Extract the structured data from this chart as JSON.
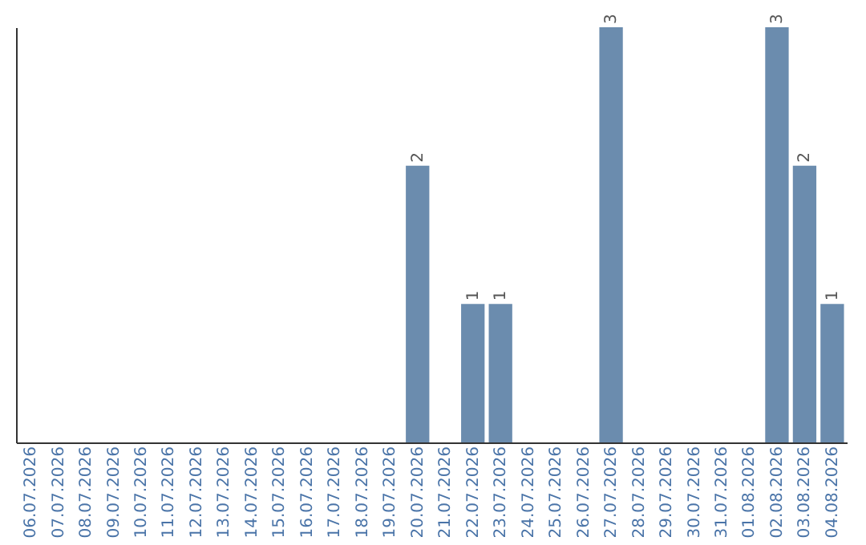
{
  "chart_data": {
    "type": "bar",
    "categories": [
      "06.07.2026",
      "07.07.2026",
      "08.07.2026",
      "09.07.2026",
      "10.07.2026",
      "11.07.2026",
      "12.07.2026",
      "13.07.2026",
      "14.07.2026",
      "15.07.2026",
      "16.07.2026",
      "17.07.2026",
      "18.07.2026",
      "19.07.2026",
      "20.07.2026",
      "21.07.2026",
      "22.07.2026",
      "23.07.2026",
      "24.07.2026",
      "25.07.2026",
      "26.07.2026",
      "27.07.2026",
      "28.07.2026",
      "29.07.2026",
      "30.07.2026",
      "31.07.2026",
      "01.08.2026",
      "02.08.2026",
      "03.08.2026",
      "04.08.2026"
    ],
    "values": [
      null,
      null,
      null,
      null,
      null,
      null,
      null,
      null,
      null,
      null,
      null,
      null,
      null,
      null,
      2,
      null,
      1,
      1,
      null,
      null,
      null,
      3,
      null,
      null,
      null,
      null,
      null,
      3,
      2,
      1
    ],
    "data_labels": true,
    "color": "#6b8cae",
    "tick_labels": "x",
    "grid": false
  }
}
